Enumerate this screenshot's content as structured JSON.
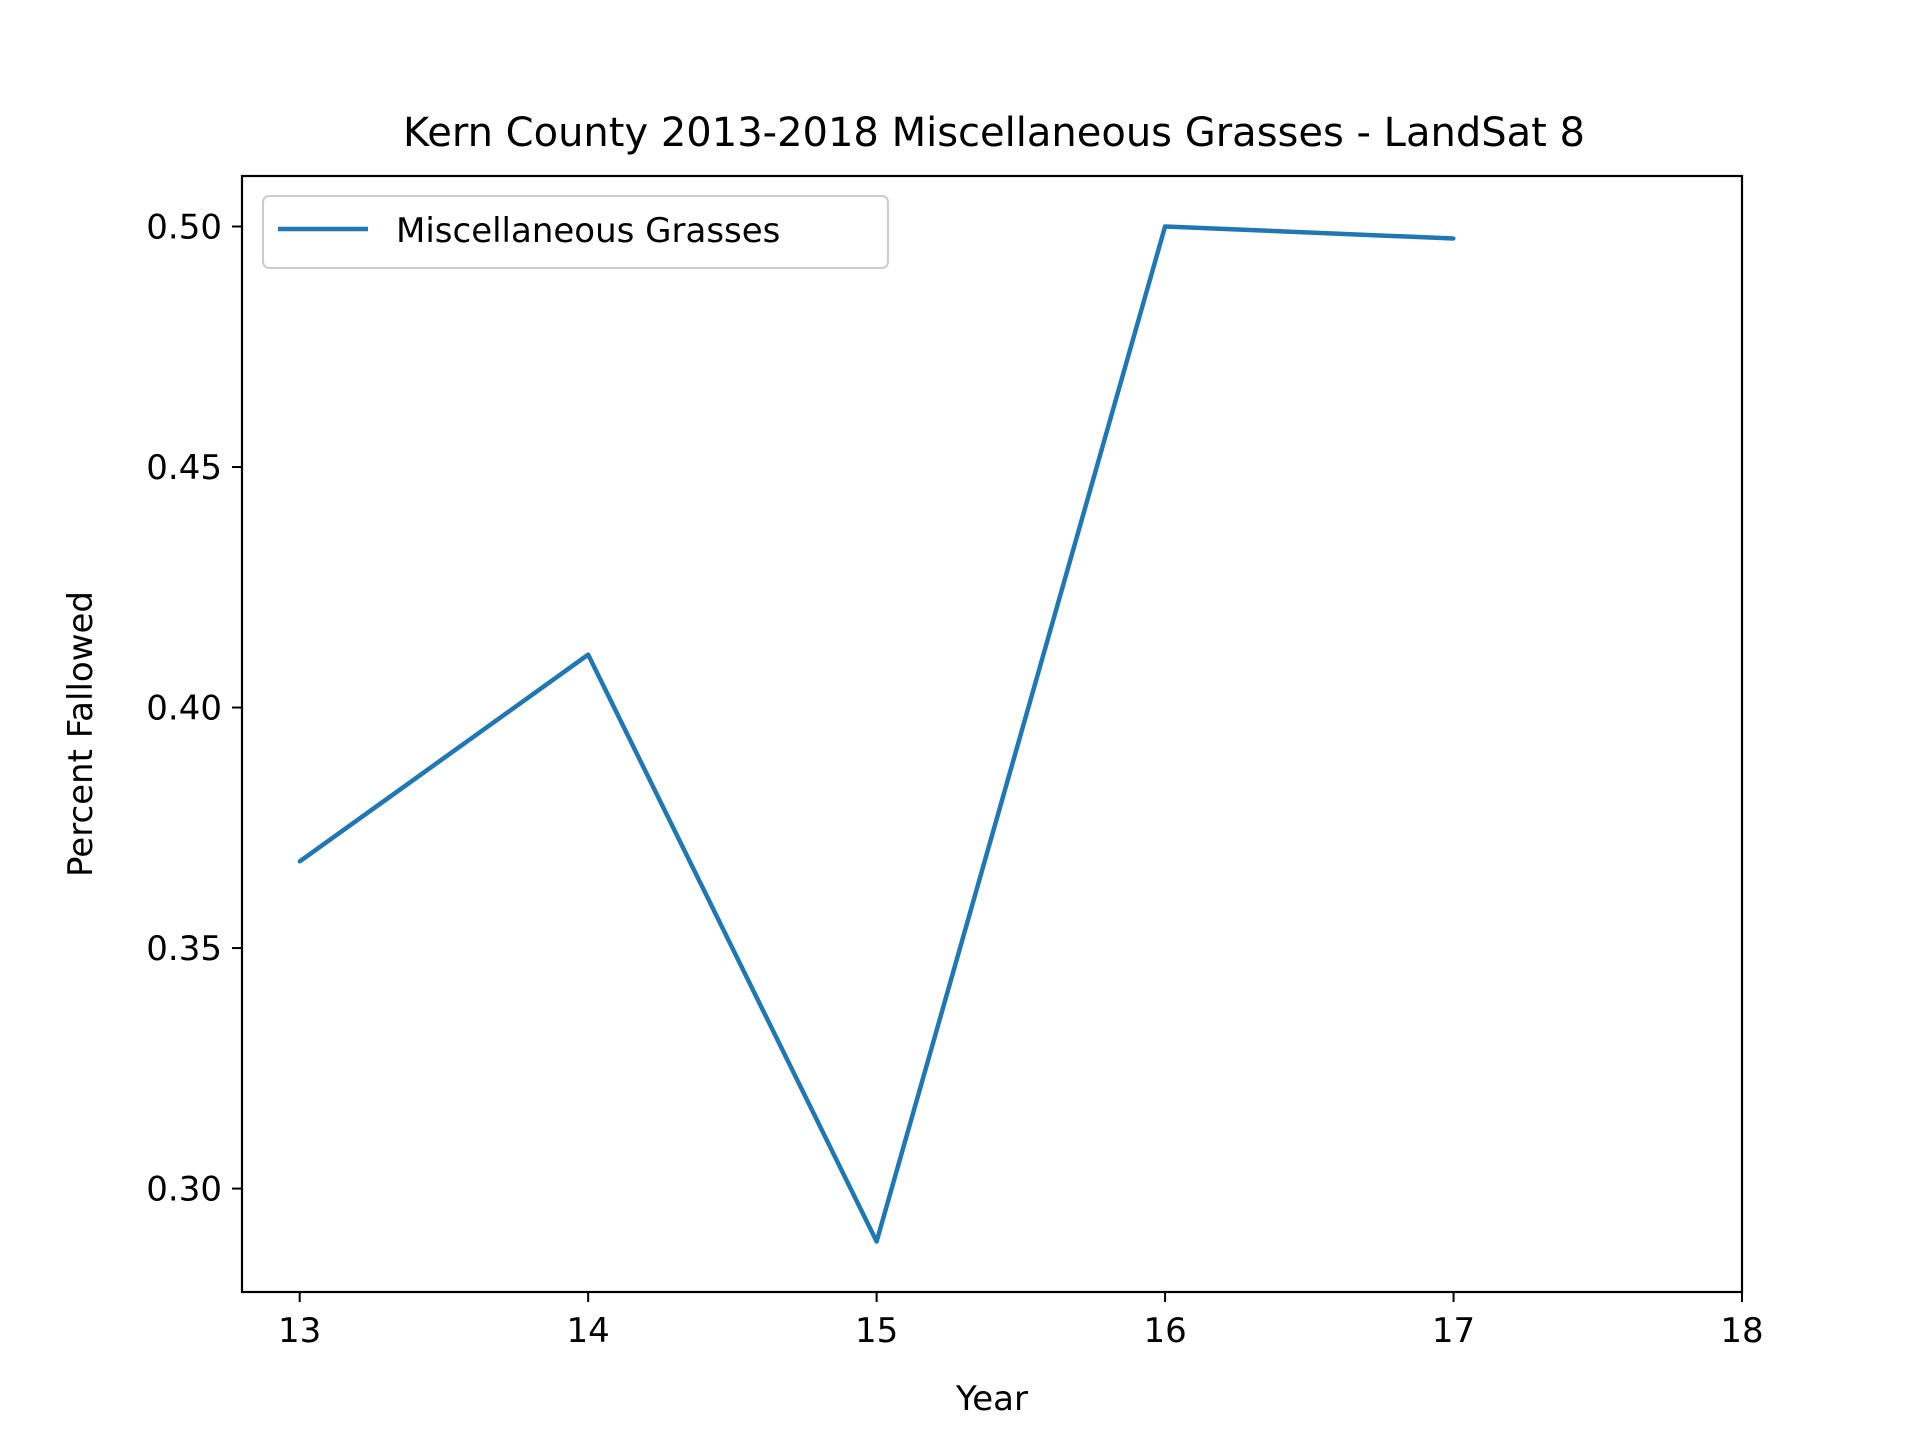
{
  "chart_data": {
    "type": "line",
    "title": "Kern County 2013-2018 Miscellaneous Grasses - LandSat 8",
    "xlabel": "Year",
    "ylabel": "Percent Fallowed",
    "x": [
      13,
      14,
      15,
      16,
      17
    ],
    "xlim": [
      12.8,
      18
    ],
    "ylim": [
      0.2785,
      0.5105
    ],
    "xticks": [
      13,
      14,
      15,
      16,
      17,
      18
    ],
    "xtick_labels": [
      "13",
      "14",
      "15",
      "16",
      "17",
      "18"
    ],
    "yticks": [
      0.3,
      0.35,
      0.4,
      0.45,
      0.5
    ],
    "ytick_labels": [
      "0.30",
      "0.35",
      "0.40",
      "0.45",
      "0.50"
    ],
    "grid": false,
    "legend_position": "top-left",
    "series": [
      {
        "name": "Miscellaneous Grasses",
        "color": "#1f77b4",
        "values": [
          0.368,
          0.411,
          0.289,
          0.5,
          0.4975
        ]
      }
    ]
  }
}
